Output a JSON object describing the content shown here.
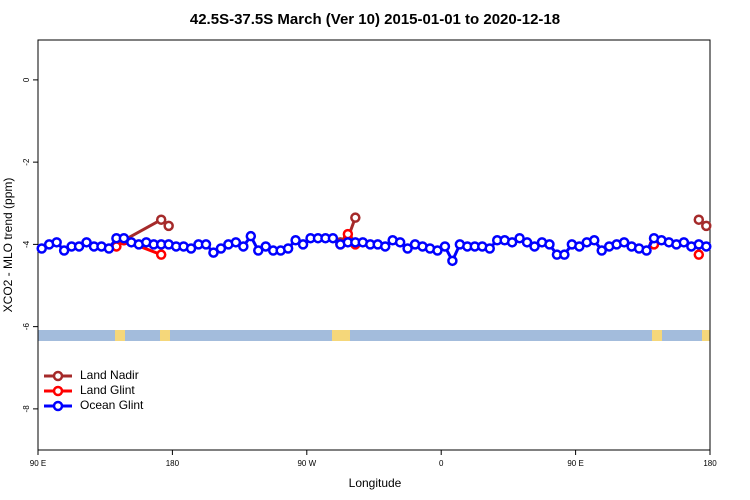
{
  "chart_data": {
    "type": "line",
    "title": "42.5S-37.5S March (Ver 10)   2015-01-01 to 2020-12-18",
    "xlabel": "Longitude",
    "ylabel": "XCO2 - MLO trend (ppm)",
    "xlim": [
      90,
      540
    ],
    "xticks": [
      {
        "value": 90,
        "label": "90 E"
      },
      {
        "value": 180,
        "label": "180"
      },
      {
        "value": 270,
        "label": "90 W"
      },
      {
        "value": 360,
        "label": "0"
      },
      {
        "value": 450,
        "label": "90 E"
      },
      {
        "value": 540,
        "label": "180"
      }
    ],
    "ylim": [
      -9,
      0.97
    ],
    "yticks": [
      0,
      -2,
      -4,
      -6,
      -8
    ],
    "legend": "bottomleft",
    "series": [
      {
        "name": "Land Nadir",
        "color": "#a52a2a",
        "x": [
          147.5,
          172.5,
          177.5,
          240,
          292.5,
          297.5,
          302.5,
          420,
          532.5,
          537.5
        ],
        "values": [
          -3.9,
          -3.4,
          -3.55,
          null,
          -3.95,
          -3.85,
          -3.35,
          null,
          -3.4,
          -3.55
        ]
      },
      {
        "name": "Land Glint",
        "color": "#ff0000",
        "x": [
          142.5,
          147.5,
          172.5,
          240,
          292.5,
          297.5,
          302.5,
          420,
          502.5,
          517.5,
          532.5
        ],
        "values": [
          -4.05,
          -3.9,
          -4.25,
          null,
          -4.0,
          -3.75,
          -4.0,
          null,
          -4.0,
          null,
          -4.25
        ]
      },
      {
        "name": "Ocean Glint",
        "color": "#0000ff",
        "x": [
          92.5,
          97.5,
          102.5,
          107.5,
          112.5,
          117.5,
          122.5,
          127.5,
          132.5,
          137.5,
          142.5,
          147.5,
          152.5,
          157.5,
          162.5,
          167.5,
          172.5,
          177.5,
          182.5,
          187.5,
          192.5,
          197.5,
          202.5,
          207.5,
          212.5,
          217.5,
          222.5,
          227.5,
          232.5,
          237.5,
          242.5,
          247.5,
          252.5,
          257.5,
          262.5,
          267.5,
          272.5,
          277.5,
          282.5,
          287.5,
          292.5,
          297.5,
          302.5,
          307.5,
          312.5,
          317.5,
          322.5,
          327.5,
          332.5,
          337.5,
          342.5,
          347.5,
          352.5,
          357.5,
          362.5,
          367.5,
          372.5,
          377.5,
          382.5,
          387.5,
          392.5,
          397.5,
          402.5,
          407.5,
          412.5,
          417.5,
          422.5,
          427.5,
          432.5,
          437.5,
          442.5,
          447.5,
          452.5,
          457.5,
          462.5,
          467.5,
          472.5,
          477.5,
          482.5,
          487.5,
          492.5,
          497.5,
          502.5,
          507.5,
          512.5,
          517.5,
          522.5,
          527.5,
          532.5,
          537.5
        ],
        "values": [
          -4.1,
          -4.0,
          -3.95,
          -4.15,
          -4.05,
          -4.05,
          -3.95,
          -4.05,
          -4.05,
          -4.1,
          -3.85,
          -3.85,
          -3.95,
          -4.0,
          -3.95,
          -4.0,
          -4.0,
          -4.0,
          -4.05,
          -4.05,
          -4.1,
          -4.0,
          -4.0,
          -4.2,
          -4.1,
          -4.0,
          -3.95,
          -4.05,
          -3.8,
          -4.15,
          -4.05,
          -4.15,
          -4.15,
          -4.1,
          -3.9,
          -4.0,
          -3.85,
          -3.85,
          -3.85,
          -3.85,
          -4.0,
          -3.95,
          -3.95,
          -3.95,
          -4.0,
          -4.0,
          -4.05,
          -3.9,
          -3.95,
          -4.1,
          -4.0,
          -4.05,
          -4.1,
          -4.15,
          -4.05,
          -4.4,
          -4.0,
          -4.05,
          -4.05,
          -4.05,
          -4.1,
          -3.9,
          -3.9,
          -3.95,
          -3.85,
          -3.95,
          -4.05,
          -3.95,
          -4.0,
          -4.25,
          -4.25,
          -4.0,
          -4.05,
          -3.95,
          -3.9,
          -4.15,
          -4.05,
          -4.0,
          -3.95,
          -4.05,
          -4.1,
          -4.15,
          -3.85,
          -3.9,
          -3.95,
          -4.0,
          -3.95,
          -4.05,
          -4.0,
          -4.05
        ]
      }
    ]
  }
}
